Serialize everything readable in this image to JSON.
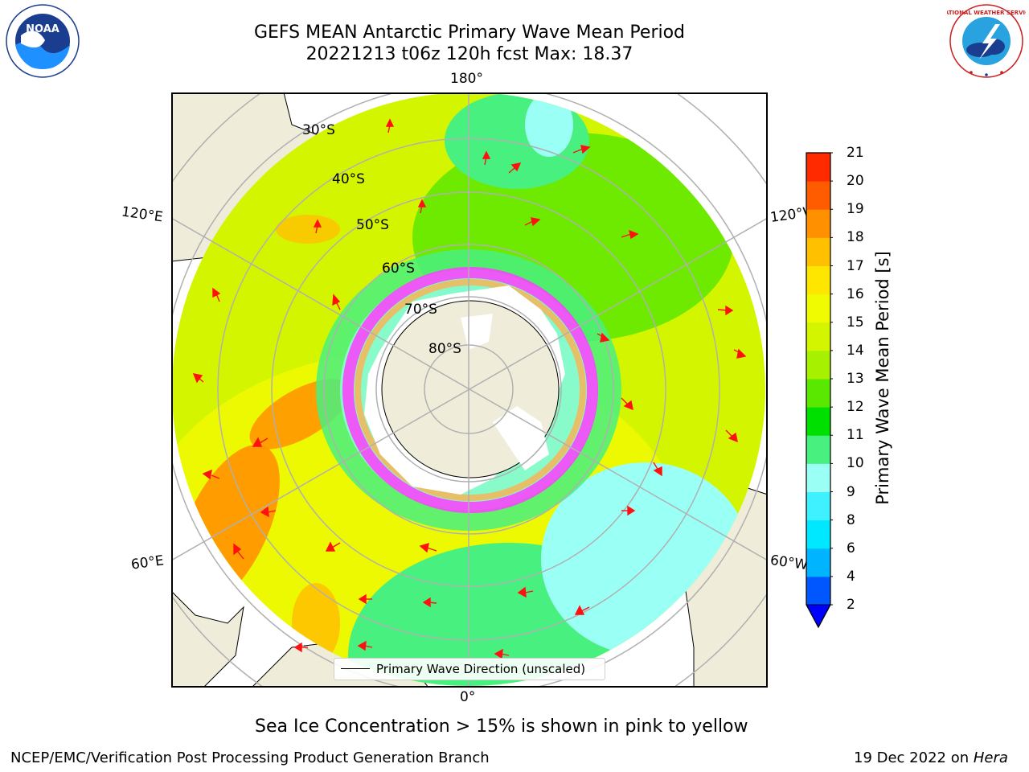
{
  "header": {
    "title_line1": "GEFS MEAN Antarctic Primary Wave Mean Period",
    "title_line2": "20221213 t06z 120h fcst   Max: 18.37"
  },
  "logos": {
    "noaa_text": "NOAA",
    "nws_text": "NATIONAL WEATHER SERVICE"
  },
  "map": {
    "meridian_labels": [
      "180°",
      "120°E",
      "120°W",
      "60°E",
      "60°W",
      "0°"
    ],
    "parallel_labels": [
      "30°S",
      "40°S",
      "50°S",
      "60°S",
      "70°S",
      "80°S"
    ],
    "legend_label": "Primary Wave Direction (unscaled)"
  },
  "colorbar": {
    "label": "Primary Wave Mean Period [s]",
    "ticks": [
      "2",
      "4",
      "6",
      "8",
      "9",
      "10",
      "11",
      "12",
      "13",
      "14",
      "15",
      "16",
      "17",
      "18",
      "19",
      "20",
      "21"
    ],
    "colors": [
      "#0057ff",
      "#00b4ff",
      "#00e8ff",
      "#3ff0ff",
      "#9afff4",
      "#48f07f",
      "#00e000",
      "#5ae800",
      "#a6f000",
      "#d4f500",
      "#f0fa00",
      "#ffe600",
      "#ffc000",
      "#ff9100",
      "#ff5c00",
      "#ff2a00"
    ],
    "extend_color": "#0000ff"
  },
  "caption": "Sea Ice Concentration > 15% is shown in pink to yellow",
  "footer": {
    "left": "NCEP/EMC/Verification Post Processing Product Generation Branch",
    "right_prefix": "19 Dec 2022 on ",
    "right_host": "Hera"
  }
}
